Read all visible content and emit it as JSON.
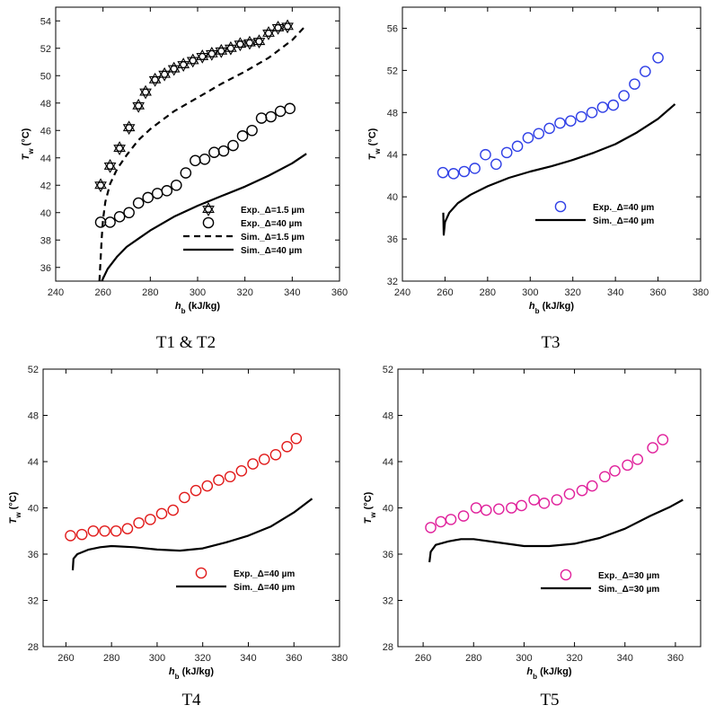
{
  "chart_data": [
    {
      "type": "scatter",
      "caption": "T1 & T2",
      "xlabel_main": "h",
      "xlabel_sub": "b",
      "xlabel_unit": " (kJ/kg)",
      "ylabel_main": "T",
      "ylabel_sub": "w",
      "ylabel_unit": " (°C)",
      "xlim": [
        240,
        360
      ],
      "ylim": [
        35,
        55
      ],
      "xticks": [
        240,
        260,
        280,
        300,
        320,
        340,
        360
      ],
      "yticks": [
        36,
        38,
        40,
        42,
        44,
        46,
        48,
        50,
        52,
        54
      ],
      "legend_position": "bottom-right",
      "series": [
        {
          "name": "Exp._Δ=1.5 µm",
          "kind": "points",
          "marker": "star-circle",
          "color": "#000000",
          "x": [
            259,
            263,
            267,
            271,
            275,
            278,
            282,
            286,
            290,
            294,
            298,
            302,
            306,
            310,
            314,
            318,
            322,
            326,
            330,
            334,
            338
          ],
          "y": [
            42.0,
            43.4,
            44.7,
            46.2,
            47.8,
            48.8,
            49.7,
            50.1,
            50.5,
            50.8,
            51.1,
            51.4,
            51.6,
            51.8,
            52.0,
            52.3,
            52.4,
            52.5,
            53.1,
            53.5,
            53.6
          ]
        },
        {
          "name": "Exp._Δ=40 µm",
          "kind": "points",
          "marker": "circle",
          "color": "#000000",
          "x": [
            259,
            263,
            267,
            271,
            275,
            279,
            283,
            287,
            291,
            295,
            299,
            303,
            307,
            311,
            315,
            319,
            323,
            327,
            331,
            335,
            339
          ],
          "y": [
            39.3,
            39.3,
            39.7,
            40.0,
            40.7,
            41.1,
            41.4,
            41.6,
            42.0,
            42.9,
            43.8,
            43.9,
            44.4,
            44.5,
            44.9,
            45.6,
            46.0,
            46.9,
            47.0,
            47.4,
            47.6
          ]
        },
        {
          "name": "Sim._Δ=1.5 µm",
          "kind": "line",
          "dash": true,
          "color": "#000000",
          "x": [
            258.5,
            259,
            259.5,
            260,
            261,
            263,
            266,
            270,
            275,
            280,
            290,
            300,
            310,
            320,
            330,
            340,
            346
          ],
          "y": [
            35.0,
            36.6,
            38.2,
            39.5,
            40.8,
            42.1,
            43.2,
            44.2,
            45.3,
            46.1,
            47.4,
            48.4,
            49.4,
            50.3,
            51.3,
            52.6,
            53.7
          ]
        },
        {
          "name": "Sim._Δ=40 µm",
          "kind": "line",
          "dash": false,
          "color": "#000000",
          "x": [
            259.5,
            262,
            266,
            270,
            275,
            280,
            290,
            300,
            310,
            320,
            330,
            340,
            346
          ],
          "y": [
            35.0,
            35.9,
            36.8,
            37.5,
            38.1,
            38.7,
            39.7,
            40.5,
            41.2,
            41.9,
            42.7,
            43.6,
            44.3
          ]
        }
      ]
    },
    {
      "type": "scatter",
      "caption": "T3",
      "xlabel_main": "h",
      "xlabel_sub": "b",
      "xlabel_unit": " (kJ/kg)",
      "ylabel_main": "T",
      "ylabel_sub": "w",
      "ylabel_unit": " (°C)",
      "xlim": [
        240,
        380
      ],
      "ylim": [
        32,
        58
      ],
      "xticks": [
        240,
        260,
        280,
        300,
        320,
        340,
        360,
        380
      ],
      "yticks": [
        32,
        36,
        40,
        44,
        48,
        52,
        56
      ],
      "legend_position": "center-right",
      "series": [
        {
          "name": "Exp._Δ=40 µm",
          "kind": "points",
          "marker": "circle",
          "color": "#2f3fe6",
          "x": [
            259,
            264,
            269,
            274,
            279,
            284,
            289,
            294,
            299,
            304,
            309,
            314,
            319,
            324,
            329,
            334,
            339,
            344,
            349,
            354,
            360
          ],
          "y": [
            42.3,
            42.2,
            42.4,
            42.7,
            44.0,
            43.1,
            44.2,
            44.8,
            45.6,
            46.0,
            46.5,
            47.0,
            47.2,
            47.6,
            48.0,
            48.5,
            48.7,
            49.6,
            50.7,
            51.9,
            53.2
          ]
        },
        {
          "name": "Sim._Δ=40 µm",
          "kind": "line",
          "dash": false,
          "color": "#000000",
          "x": [
            259.2,
            259.4,
            260,
            262,
            266,
            272,
            280,
            290,
            300,
            310,
            320,
            330,
            340,
            350,
            360,
            368
          ],
          "y": [
            38.5,
            36.4,
            37.6,
            38.5,
            39.4,
            40.2,
            41.0,
            41.8,
            42.4,
            42.9,
            43.5,
            44.2,
            45.0,
            46.1,
            47.4,
            48.8
          ]
        }
      ]
    },
    {
      "type": "scatter",
      "caption": "T4",
      "xlabel_main": "h",
      "xlabel_sub": "b",
      "xlabel_unit": " (kJ/kg)",
      "ylabel_main": "T",
      "ylabel_sub": "w",
      "ylabel_unit": " (°C)",
      "xlim": [
        250,
        380
      ],
      "ylim": [
        28,
        52
      ],
      "xticks": [
        260,
        280,
        300,
        320,
        340,
        360,
        380
      ],
      "yticks": [
        28,
        32,
        36,
        40,
        44,
        48,
        52
      ],
      "legend_position": "bottom-right",
      "series": [
        {
          "name": "Exp._Δ=40 µm",
          "kind": "points",
          "marker": "circle",
          "color": "#e11b1b",
          "x": [
            262,
            267,
            272,
            277,
            282,
            287,
            292,
            297,
            302,
            307,
            312,
            317,
            322,
            327,
            332,
            337,
            342,
            347,
            352,
            357,
            361
          ],
          "y": [
            37.6,
            37.7,
            38.0,
            38.0,
            38.0,
            38.2,
            38.7,
            39.0,
            39.5,
            39.8,
            40.9,
            41.5,
            41.9,
            42.4,
            42.7,
            43.2,
            43.8,
            44.2,
            44.6,
            45.3,
            46.0
          ]
        },
        {
          "name": "Sim._Δ=40 µm",
          "kind": "line",
          "dash": false,
          "color": "#000000",
          "x": [
            263,
            263.3,
            265,
            270,
            275,
            280,
            290,
            300,
            310,
            320,
            330,
            340,
            350,
            360,
            368
          ],
          "y": [
            34.6,
            35.6,
            36.0,
            36.4,
            36.6,
            36.7,
            36.6,
            36.4,
            36.3,
            36.5,
            37.0,
            37.6,
            38.4,
            39.6,
            40.8
          ]
        }
      ]
    },
    {
      "type": "scatter",
      "caption": "T5",
      "xlabel_main": "h",
      "xlabel_sub": "b",
      "xlabel_unit": " (kJ/kg)",
      "ylabel_main": "T",
      "ylabel_sub": "w",
      "ylabel_unit": " (°C)",
      "xlim": [
        250,
        370
      ],
      "ylim": [
        28,
        52
      ],
      "xticks": [
        260,
        280,
        300,
        320,
        340,
        360
      ],
      "yticks": [
        28,
        32,
        36,
        40,
        44,
        48,
        52
      ],
      "legend_position": "bottom-right",
      "series": [
        {
          "name": "Exp._Δ=30 µm",
          "kind": "points",
          "marker": "circle",
          "color": "#e0219b",
          "x": [
            263,
            267,
            271,
            276,
            281,
            285,
            290,
            295,
            299,
            304,
            308,
            313,
            318,
            323,
            327,
            332,
            336,
            341,
            345,
            351,
            355
          ],
          "y": [
            38.3,
            38.8,
            39.0,
            39.3,
            40.0,
            39.8,
            39.9,
            40.0,
            40.2,
            40.7,
            40.4,
            40.7,
            41.2,
            41.5,
            41.9,
            42.7,
            43.2,
            43.7,
            44.2,
            45.2,
            45.9
          ]
        },
        {
          "name": "Sim._Δ=30 µm",
          "kind": "line",
          "dash": false,
          "color": "#000000",
          "x": [
            262.5,
            263,
            265,
            270,
            275,
            280,
            290,
            300,
            310,
            320,
            330,
            340,
            350,
            358,
            363
          ],
          "y": [
            35.3,
            36.2,
            36.8,
            37.1,
            37.3,
            37.3,
            37.0,
            36.7,
            36.7,
            36.9,
            37.4,
            38.2,
            39.3,
            40.1,
            40.7
          ]
        }
      ]
    }
  ]
}
